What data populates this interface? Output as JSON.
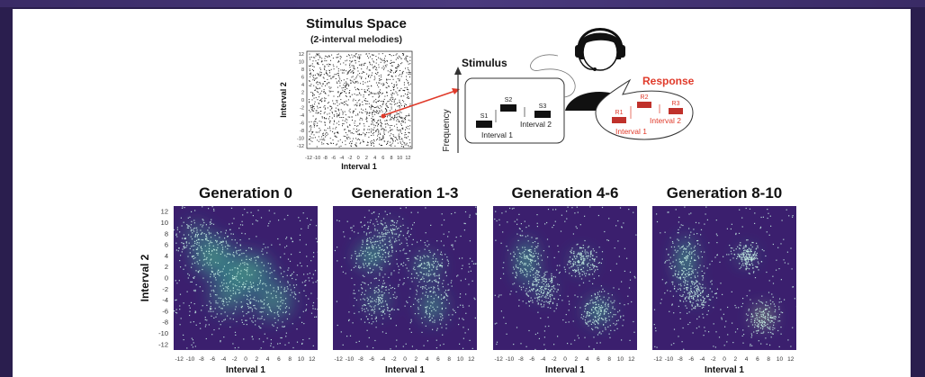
{
  "top": {
    "title": "Stimulus Space",
    "subtitle": "(2-interval melodies)",
    "ylabel": "Interval 2",
    "xlabel": "Interval 1",
    "xticks": [
      "-12",
      "-10",
      "-8",
      "-6",
      "-4",
      "-2",
      "0",
      "2",
      "4",
      "6",
      "8",
      "10",
      "12"
    ],
    "yticks": [
      "12",
      "10",
      "8",
      "6",
      "4",
      "2",
      "0",
      "-2",
      "-4",
      "-6",
      "-8",
      "-10",
      "-12"
    ],
    "stimulus_label": "Stimulus",
    "frequency_label": "Frequency",
    "s_labels": [
      "S1",
      "S2",
      "S3"
    ],
    "stim_interval1": "Interval 1",
    "stim_interval2": "Interval 2",
    "response_label": "Response",
    "r_labels": [
      "R1",
      "R2",
      "R3"
    ],
    "resp_interval1": "Interval 1",
    "resp_interval2": "Interval 2"
  },
  "generations": {
    "ylabel": "Interval 2",
    "xticks": [
      "-12",
      "-10",
      "-8",
      "-6",
      "-4",
      "-2",
      "0",
      "2",
      "4",
      "6",
      "8",
      "10",
      "12"
    ],
    "yticks": [
      "12",
      "10",
      "8",
      "6",
      "4",
      "2",
      "0",
      "-2",
      "-4",
      "-6",
      "-8",
      "-10",
      "-12"
    ],
    "panels": [
      {
        "title": "Generation 0",
        "xlabel": "Interval 1"
      },
      {
        "title": "Generation 1-3",
        "xlabel": "Interval 1"
      },
      {
        "title": "Generation 4-6",
        "xlabel": "Interval 1"
      },
      {
        "title": "Generation 8-10",
        "xlabel": "Interval 1"
      }
    ]
  },
  "colors": {
    "heat_bg": "#3b1f6e",
    "point": "#c9f3e6",
    "hot": "#f8f176",
    "accent_red": "#e03a2a",
    "response_box": "#c0312b"
  }
}
